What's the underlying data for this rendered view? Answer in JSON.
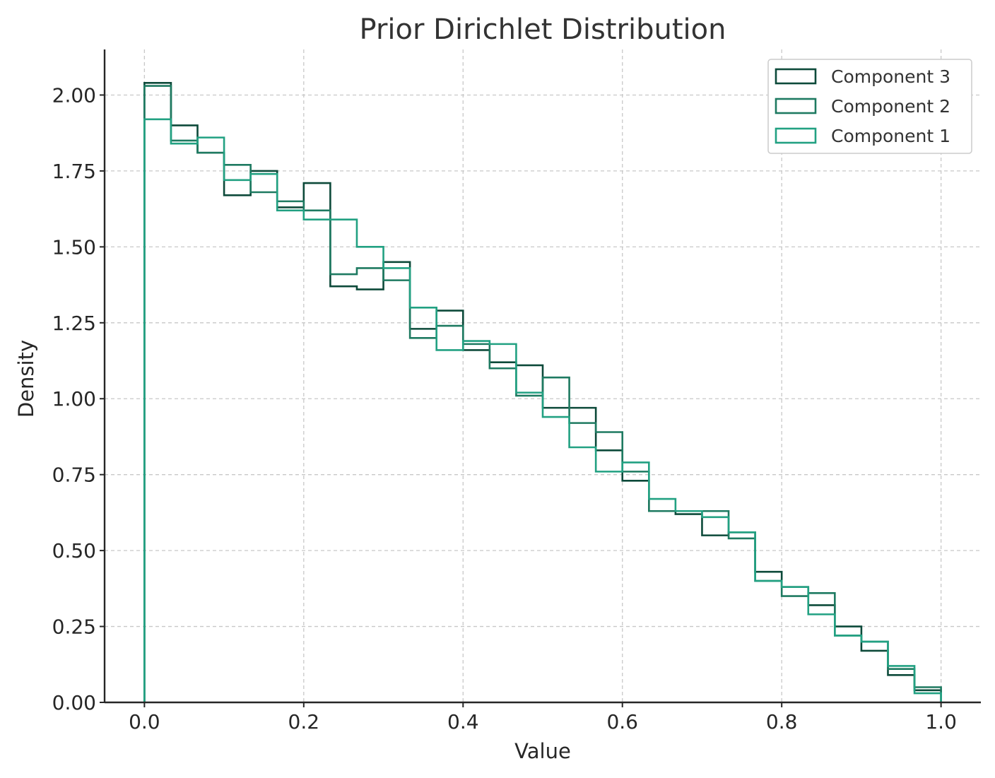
{
  "chart_data": {
    "type": "histogram-step",
    "title": "Prior Dirichlet Distribution",
    "xlabel": "Value",
    "ylabel": "Density",
    "xlim": [
      -0.05,
      1.05
    ],
    "ylim": [
      0,
      2.15
    ],
    "xticks": [
      0.0,
      0.2,
      0.4,
      0.6,
      0.8,
      1.0
    ],
    "xtick_labels": [
      "0.0",
      "0.2",
      "0.4",
      "0.6",
      "0.8",
      "1.0"
    ],
    "yticks": [
      0.0,
      0.25,
      0.5,
      0.75,
      1.0,
      1.25,
      1.5,
      1.75,
      2.0
    ],
    "ytick_labels": [
      "0.00",
      "0.25",
      "0.50",
      "0.75",
      "1.00",
      "1.25",
      "1.50",
      "1.75",
      "2.00"
    ],
    "grid": true,
    "legend_position": "top-right",
    "bins": {
      "start": 0.0,
      "end": 1.0,
      "count": 30
    },
    "series": [
      {
        "name": "Component 3",
        "color": "#0d4a3a",
        "values": [
          2.04,
          1.9,
          1.81,
          1.67,
          1.75,
          1.63,
          1.71,
          1.37,
          1.36,
          1.45,
          1.23,
          1.29,
          1.16,
          1.12,
          1.11,
          0.97,
          0.97,
          0.83,
          0.73,
          0.63,
          0.62,
          0.55,
          0.56,
          0.43,
          0.38,
          0.32,
          0.25,
          0.17,
          0.09,
          0.04
        ]
      },
      {
        "name": "Component 2",
        "color": "#1e7a61",
        "values": [
          2.03,
          1.85,
          1.81,
          1.77,
          1.68,
          1.65,
          1.62,
          1.41,
          1.43,
          1.39,
          1.2,
          1.24,
          1.18,
          1.1,
          1.01,
          1.07,
          0.92,
          0.89,
          0.76,
          0.63,
          0.63,
          0.63,
          0.54,
          0.4,
          0.35,
          0.36,
          0.22,
          0.2,
          0.11,
          0.05
        ]
      },
      {
        "name": "Component 1",
        "color": "#22a182",
        "values": [
          1.92,
          1.84,
          1.86,
          1.72,
          1.74,
          1.62,
          1.59,
          1.59,
          1.5,
          1.43,
          1.3,
          1.16,
          1.19,
          1.18,
          1.02,
          0.94,
          0.84,
          0.76,
          0.79,
          0.67,
          0.63,
          0.61,
          0.56,
          0.4,
          0.38,
          0.29,
          0.22,
          0.2,
          0.12,
          0.03
        ]
      }
    ]
  }
}
